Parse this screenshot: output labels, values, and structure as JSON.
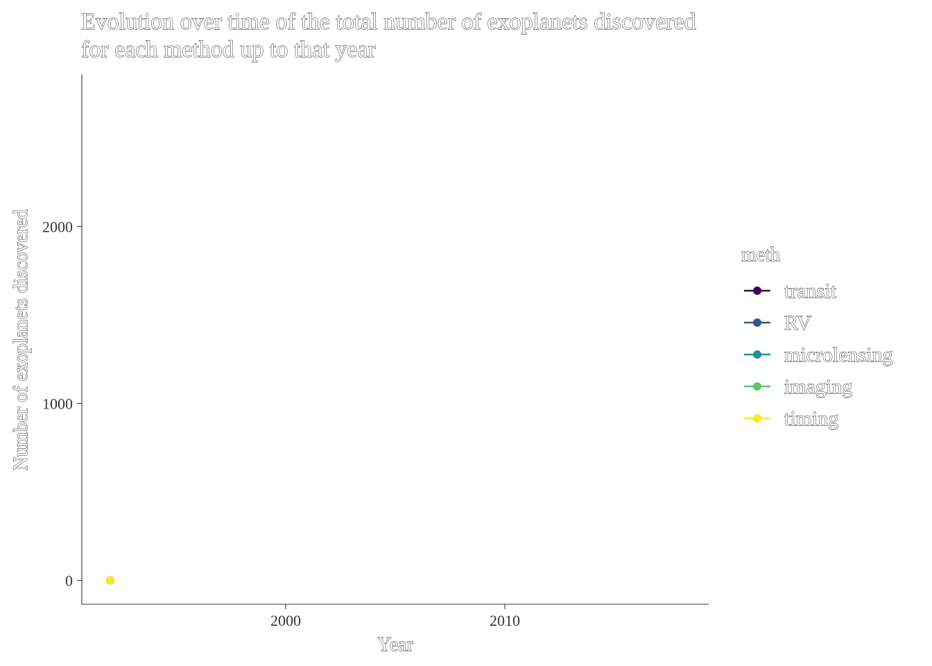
{
  "chart_data": {
    "type": "line",
    "title": "Evolution over time of the total number of exoplanets discovered for each method up to that year",
    "title_lines": [
      "Evolution over time of the total number of exoplanets discovered",
      "for each method up to that year"
    ],
    "xlabel": "Year",
    "ylabel": "Number of exoplanets discovered",
    "xlim": [
      1990.7,
      2019.3
    ],
    "ylim": [
      -135,
      2860
    ],
    "x_ticks": [
      2000,
      2010
    ],
    "y_ticks": [
      0,
      1000,
      2000
    ],
    "grid": false,
    "legend": {
      "title": "meth",
      "placement": "right"
    },
    "series": [
      {
        "name": "transit",
        "color": "#440154",
        "points": [
          {
            "x": 1992,
            "y": 0
          }
        ]
      },
      {
        "name": "RV",
        "color": "#3B528B",
        "points": [
          {
            "x": 1992,
            "y": 0
          }
        ]
      },
      {
        "name": "microlensing",
        "color": "#21908C",
        "points": [
          {
            "x": 1992,
            "y": 0
          }
        ]
      },
      {
        "name": "imaging",
        "color": "#5DC863",
        "points": [
          {
            "x": 1992,
            "y": 0
          }
        ]
      },
      {
        "name": "timing",
        "color": "#FDE725",
        "points": [
          {
            "x": 1992,
            "y": 0
          }
        ]
      }
    ]
  }
}
